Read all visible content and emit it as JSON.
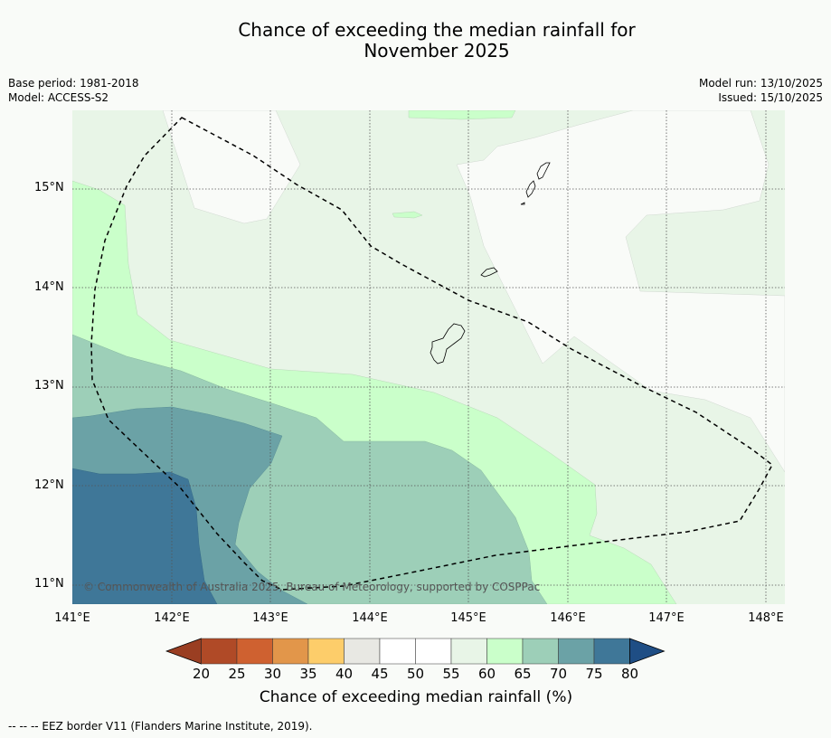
{
  "title_line1": "Chance of exceeding the median rainfall for",
  "title_line2": "November 2025",
  "meta_left": [
    "Base period: 1981-2018",
    "Model: ACCESS-S2"
  ],
  "meta_right": [
    "Model run: 13/10/2025",
    "Issued: 15/10/2025"
  ],
  "lat_labels": [
    "15°N",
    "14°N",
    "13°N",
    "12°N",
    "11°N"
  ],
  "lon_labels": [
    "141°E",
    "142°E",
    "143°E",
    "144°E",
    "145°E",
    "146°E",
    "147°E",
    "148°E"
  ],
  "copyright": "© Commonwealth of Australia 2025, Bureau of Meteorology, supported by COSPPac",
  "colorbar": {
    "ticks": [
      "20",
      "25",
      "30",
      "35",
      "40",
      "45",
      "50",
      "55",
      "60",
      "65",
      "70",
      "75",
      "80"
    ],
    "colors": [
      "#b04a27",
      "#cf6130",
      "#e2964a",
      "#fdcd6a",
      "#e8e8e3",
      "#ffffff",
      "#ffffff",
      "#e8f5e7",
      "#caffca",
      "#9dcfb8",
      "#6ba2a6",
      "#3f7798"
    ],
    "under_color": "#9a3e22",
    "over_color": "#1f4e85",
    "label": "Chance of exceeding median rainfall (%)"
  },
  "footnote": "--  --  -- EEZ border V11 (Flanders Marine Institute, 2019)."
}
